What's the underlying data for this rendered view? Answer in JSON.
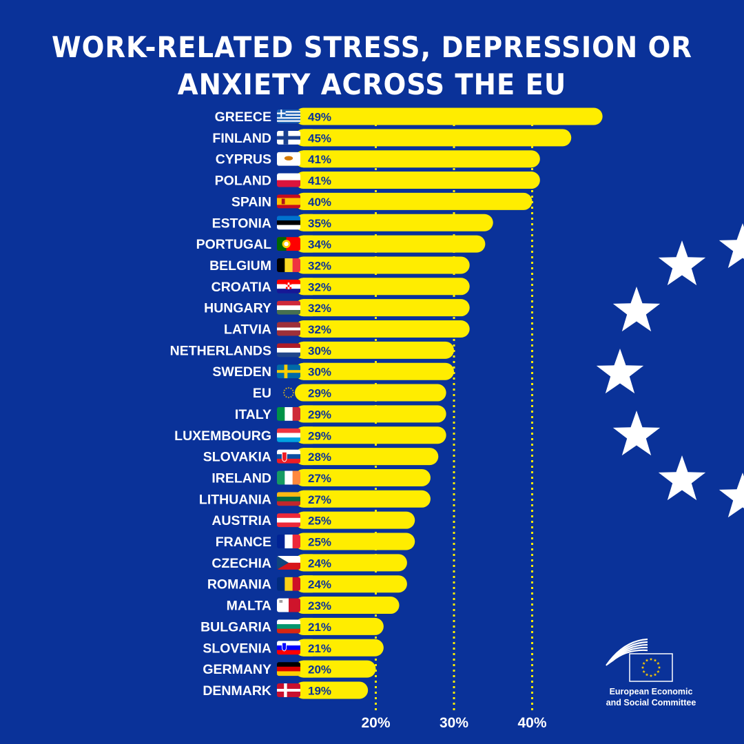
{
  "header": {
    "title_line1": "WORK-RELATED STRESS, DEPRESSION OR",
    "title_line2": "ANXIETY ACROSS THE EU"
  },
  "footer": {
    "org_line1": "European Economic",
    "org_line2": "and Social Committee"
  },
  "colors": {
    "background": "#0a3299",
    "bar": "#ffed00",
    "text": "#ffffff",
    "value_text": "#0a3299"
  },
  "chart_data": {
    "type": "bar",
    "orientation": "horizontal",
    "title": "WORK-RELATED STRESS, DEPRESSION OR ANXIETY ACROSS THE EU",
    "xlabel": "",
    "ylabel": "",
    "xlim": [
      12,
      50
    ],
    "grid": "dotted vertical reference lines at 20%, 30%, 40%",
    "tick_labels": [
      "20%",
      "30%",
      "40%"
    ],
    "ticks": [
      20,
      30,
      40
    ],
    "categories": [
      "GREECE",
      "FINLAND",
      "CYPRUS",
      "POLAND",
      "SPAIN",
      "ESTONIA",
      "PORTUGAL",
      "BELGIUM",
      "CROATIA",
      "HUNGARY",
      "LATVIA",
      "NETHERLANDS",
      "SWEDEN",
      "EU",
      "ITALY",
      "LUXEMBOURG",
      "SLOVAKIA",
      "IRELAND",
      "LITHUANIA",
      "AUSTRIA",
      "FRANCE",
      "CZECHIA",
      "ROMANIA",
      "MALTA",
      "BULGARIA",
      "SLOVENIA",
      "GERMANY",
      "DENMARK"
    ],
    "values": [
      49,
      45,
      41,
      41,
      40,
      35,
      34,
      32,
      32,
      32,
      32,
      30,
      30,
      29,
      29,
      29,
      28,
      27,
      27,
      25,
      25,
      24,
      24,
      23,
      21,
      21,
      20,
      19
    ],
    "value_labels": [
      "49%",
      "45%",
      "41%",
      "41%",
      "40%",
      "35%",
      "34%",
      "32%",
      "32%",
      "32%",
      "32%",
      "30%",
      "30%",
      "29%",
      "29%",
      "29%",
      "28%",
      "27%",
      "27%",
      "25%",
      "25%",
      "24%",
      "24%",
      "23%",
      "21%",
      "21%",
      "20%",
      "19%"
    ],
    "flags": [
      "greece",
      "finland",
      "cyprus",
      "poland",
      "spain",
      "estonia",
      "portugal",
      "belgium",
      "croatia",
      "hungary",
      "latvia",
      "netherlands",
      "sweden",
      "eu",
      "italy",
      "luxembourg",
      "slovakia",
      "ireland",
      "lithuania",
      "austria",
      "france",
      "czechia",
      "romania",
      "malta",
      "bulgaria",
      "slovenia",
      "germany",
      "denmark"
    ]
  }
}
